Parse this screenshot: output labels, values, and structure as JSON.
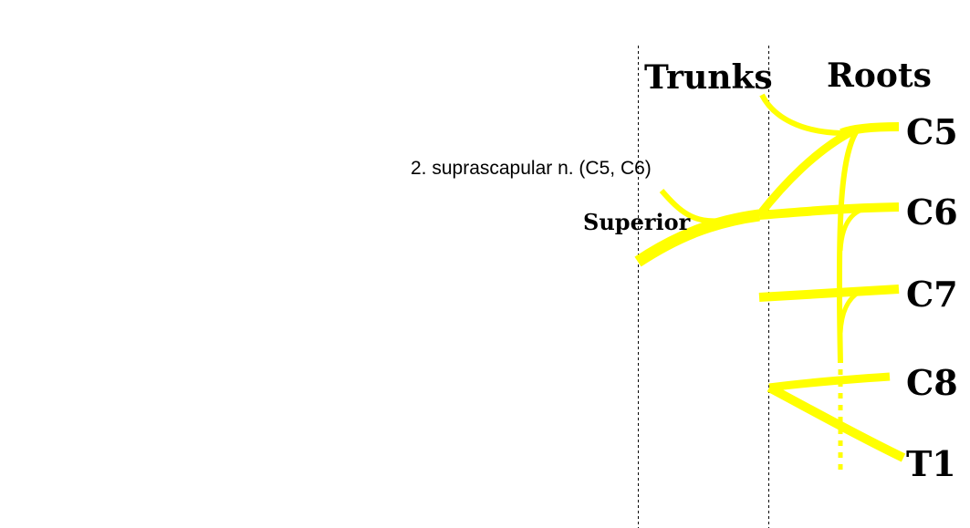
{
  "headers": {
    "trunks": "Trunks",
    "roots": "Roots"
  },
  "roots": [
    "C5",
    "C6",
    "C7",
    "C8",
    "T1"
  ],
  "trunk_label": "Superior",
  "caption": "2.  suprascapular n. (C5, C6)",
  "colors": {
    "nerve": "#ffff00",
    "text": "#000000",
    "divider": "#000000",
    "background": "#ffffff"
  }
}
